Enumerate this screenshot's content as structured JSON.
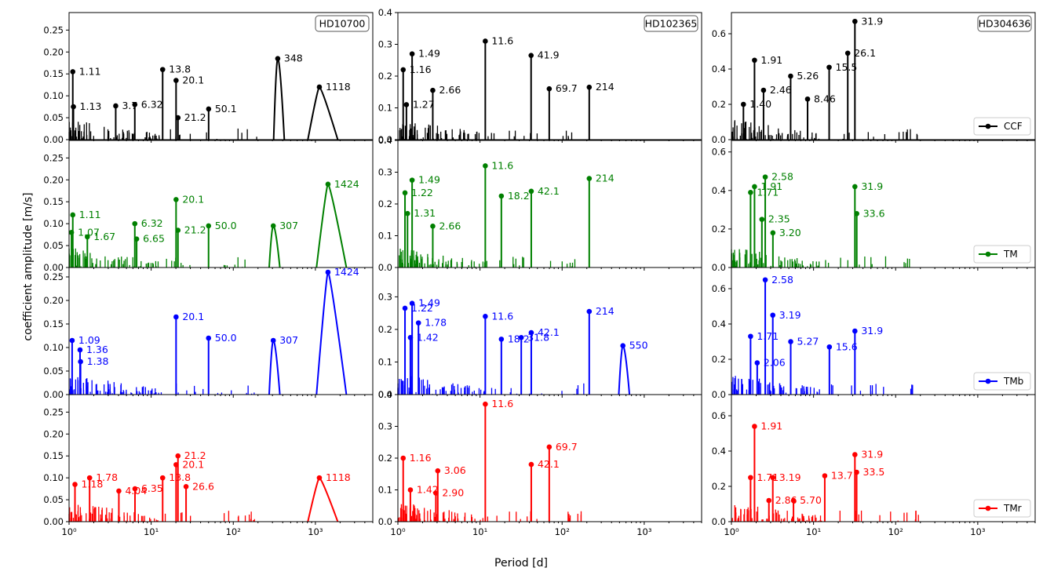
{
  "figure": {
    "ylabel": "coefficient amplitude [m/s]",
    "xlabel": "Period [d]",
    "xticks": [
      {
        "v": 1,
        "label": "10⁰"
      },
      {
        "v": 10,
        "label": "10¹"
      },
      {
        "v": 100,
        "label": "10²"
      },
      {
        "v": 1000,
        "label": "10³"
      }
    ],
    "xlim": [
      1,
      5000
    ],
    "xscale": "log",
    "stars": [
      "HD10700",
      "HD102365",
      "HD304636"
    ],
    "methods": [
      {
        "name": "CCF",
        "color": "#000000"
      },
      {
        "name": "TM",
        "color": "#008000"
      },
      {
        "name": "TMb",
        "color": "#0000ff"
      },
      {
        "name": "TMr",
        "color": "#ff0000"
      }
    ]
  },
  "chart_data": [
    {
      "type": "line",
      "star": "HD10700",
      "method": "CCF",
      "ylim": [
        0,
        0.29
      ],
      "yticks": [
        "0.00",
        "0.05",
        "0.10",
        "0.15",
        "0.20",
        "0.25"
      ],
      "peaks": [
        {
          "x": 1.11,
          "y": 0.155,
          "label": "1.11"
        },
        {
          "x": 1.13,
          "y": 0.075,
          "label": "1.13"
        },
        {
          "x": 3.7,
          "y": 0.077,
          "label": "3.7"
        },
        {
          "x": 6.32,
          "y": 0.08,
          "label": "6.32"
        },
        {
          "x": 13.8,
          "y": 0.16,
          "label": "13.8"
        },
        {
          "x": 20.1,
          "y": 0.135,
          "label": "20.1"
        },
        {
          "x": 21.2,
          "y": 0.05,
          "label": "21.2"
        },
        {
          "x": 50.1,
          "y": 0.07,
          "label": "50.1"
        },
        {
          "x": 348,
          "y": 0.185,
          "label": "348"
        },
        {
          "x": 1118,
          "y": 0.12,
          "label": "1118"
        }
      ]
    },
    {
      "type": "line",
      "star": "HD102365",
      "method": "CCF",
      "ylim": [
        0,
        0.4
      ],
      "yticks": [
        "0.0",
        "0.1",
        "0.2",
        "0.3",
        "0.4"
      ],
      "peaks": [
        {
          "x": 1.16,
          "y": 0.22,
          "label": "1.16"
        },
        {
          "x": 1.49,
          "y": 0.27,
          "label": "1.49"
        },
        {
          "x": 1.27,
          "y": 0.11,
          "label": "1.27"
        },
        {
          "x": 2.66,
          "y": 0.155,
          "label": "2.66"
        },
        {
          "x": 11.6,
          "y": 0.31,
          "label": "11.6"
        },
        {
          "x": 41.9,
          "y": 0.265,
          "label": "41.9"
        },
        {
          "x": 69.7,
          "y": 0.16,
          "label": "69.7"
        },
        {
          "x": 214,
          "y": 0.165,
          "label": "214"
        }
      ]
    },
    {
      "type": "line",
      "star": "HD304636",
      "method": "CCF",
      "ylim": [
        0,
        0.72
      ],
      "yticks": [
        "0.0",
        "0.2",
        "0.4",
        "0.6"
      ],
      "peaks": [
        {
          "x": 1.91,
          "y": 0.45,
          "label": "1.91"
        },
        {
          "x": 1.4,
          "y": 0.2,
          "label": "1.40"
        },
        {
          "x": 2.46,
          "y": 0.28,
          "label": "2.46"
        },
        {
          "x": 5.26,
          "y": 0.36,
          "label": "5.26"
        },
        {
          "x": 8.46,
          "y": 0.23,
          "label": "8.46"
        },
        {
          "x": 15.5,
          "y": 0.41,
          "label": "15.5"
        },
        {
          "x": 26.1,
          "y": 0.49,
          "label": "26.1"
        },
        {
          "x": 31.9,
          "y": 0.67,
          "label": "31.9"
        }
      ]
    },
    {
      "type": "line",
      "star": "HD10700",
      "method": "TM",
      "ylim": [
        0,
        0.29
      ],
      "yticks": [
        "0.00",
        "0.05",
        "0.10",
        "0.15",
        "0.20",
        "0.25"
      ],
      "peaks": [
        {
          "x": 1.11,
          "y": 0.12,
          "label": "1.11"
        },
        {
          "x": 1.07,
          "y": 0.08,
          "label": "1.07"
        },
        {
          "x": 1.67,
          "y": 0.07,
          "label": "1.67"
        },
        {
          "x": 6.32,
          "y": 0.1,
          "label": "6.32"
        },
        {
          "x": 6.65,
          "y": 0.065,
          "label": "6.65"
        },
        {
          "x": 20.1,
          "y": 0.155,
          "label": "20.1"
        },
        {
          "x": 21.2,
          "y": 0.085,
          "label": "21.2"
        },
        {
          "x": 50.0,
          "y": 0.095,
          "label": "50.0"
        },
        {
          "x": 307,
          "y": 0.095,
          "label": "307"
        },
        {
          "x": 1424,
          "y": 0.19,
          "label": "1424"
        }
      ]
    },
    {
      "type": "line",
      "star": "HD102365",
      "method": "TM",
      "ylim": [
        0,
        0.4
      ],
      "yticks": [
        "0.0",
        "0.1",
        "0.2",
        "0.3",
        "0.4"
      ],
      "peaks": [
        {
          "x": 1.22,
          "y": 0.235,
          "label": "1.22"
        },
        {
          "x": 1.49,
          "y": 0.275,
          "label": "1.49"
        },
        {
          "x": 1.31,
          "y": 0.17,
          "label": "1.31"
        },
        {
          "x": 2.66,
          "y": 0.13,
          "label": "2.66"
        },
        {
          "x": 11.6,
          "y": 0.32,
          "label": "11.6"
        },
        {
          "x": 18.2,
          "y": 0.225,
          "label": "18.2"
        },
        {
          "x": 42.1,
          "y": 0.24,
          "label": "42.1"
        },
        {
          "x": 214,
          "y": 0.28,
          "label": "214"
        }
      ]
    },
    {
      "type": "line",
      "star": "HD304636",
      "method": "TM",
      "ylim": [
        0,
        0.66
      ],
      "yticks": [
        "0.0",
        "0.2",
        "0.4",
        "0.6"
      ],
      "peaks": [
        {
          "x": 1.71,
          "y": 0.39,
          "label": "1.71"
        },
        {
          "x": 1.91,
          "y": 0.42,
          "label": "1.91"
        },
        {
          "x": 2.58,
          "y": 0.47,
          "label": "2.58"
        },
        {
          "x": 2.35,
          "y": 0.25,
          "label": "2.35"
        },
        {
          "x": 3.2,
          "y": 0.18,
          "label": "3.20"
        },
        {
          "x": 31.9,
          "y": 0.42,
          "label": "31.9"
        },
        {
          "x": 33.6,
          "y": 0.28,
          "label": "33.6"
        }
      ]
    },
    {
      "type": "line",
      "star": "HD10700",
      "method": "TMb",
      "ylim": [
        0,
        0.27
      ],
      "yticks": [
        "0.00",
        "0.05",
        "0.10",
        "0.15",
        "0.20",
        "0.25"
      ],
      "peaks": [
        {
          "x": 1.09,
          "y": 0.115,
          "label": "1.09"
        },
        {
          "x": 1.36,
          "y": 0.095,
          "label": "1.36"
        },
        {
          "x": 1.38,
          "y": 0.07,
          "label": "1.38"
        },
        {
          "x": 20.1,
          "y": 0.165,
          "label": "20.1"
        },
        {
          "x": 50.0,
          "y": 0.12,
          "label": "50.0"
        },
        {
          "x": 307,
          "y": 0.115,
          "label": "307"
        },
        {
          "x": 1424,
          "y": 0.26,
          "label": "1424"
        }
      ]
    },
    {
      "type": "line",
      "star": "HD102365",
      "method": "TMb",
      "ylim": [
        0,
        0.39
      ],
      "yticks": [
        "0.0",
        "0.1",
        "0.2",
        "0.3"
      ],
      "peaks": [
        {
          "x": 1.22,
          "y": 0.265,
          "label": "1.22"
        },
        {
          "x": 1.49,
          "y": 0.28,
          "label": "1.49"
        },
        {
          "x": 1.78,
          "y": 0.22,
          "label": "1.78"
        },
        {
          "x": 1.42,
          "y": 0.175,
          "label": "1.42"
        },
        {
          "x": 11.6,
          "y": 0.24,
          "label": "11.6"
        },
        {
          "x": 18.2,
          "y": 0.17,
          "label": "18.2"
        },
        {
          "x": 31.8,
          "y": 0.175,
          "label": "31.8"
        },
        {
          "x": 42.1,
          "y": 0.19,
          "label": "42.1"
        },
        {
          "x": 214,
          "y": 0.255,
          "label": "214"
        },
        {
          "x": 550,
          "y": 0.15,
          "label": "550"
        }
      ]
    },
    {
      "type": "line",
      "star": "HD304636",
      "method": "TMb",
      "ylim": [
        0,
        0.72
      ],
      "yticks": [
        "0.0",
        "0.2",
        "0.4",
        "0.6"
      ],
      "peaks": [
        {
          "x": 2.58,
          "y": 0.65,
          "label": "2.58"
        },
        {
          "x": 3.19,
          "y": 0.45,
          "label": "3.19"
        },
        {
          "x": 1.71,
          "y": 0.33,
          "label": "1.71"
        },
        {
          "x": 2.06,
          "y": 0.18,
          "label": "2.06"
        },
        {
          "x": 5.27,
          "y": 0.3,
          "label": "5.27"
        },
        {
          "x": 15.6,
          "y": 0.27,
          "label": "15.6"
        },
        {
          "x": 31.9,
          "y": 0.36,
          "label": "31.9"
        }
      ]
    },
    {
      "type": "line",
      "star": "HD10700",
      "method": "TMr",
      "ylim": [
        0,
        0.29
      ],
      "yticks": [
        "0.00",
        "0.05",
        "0.10",
        "0.15",
        "0.20",
        "0.25"
      ],
      "peaks": [
        {
          "x": 1.18,
          "y": 0.085,
          "label": "1.18"
        },
        {
          "x": 1.78,
          "y": 0.1,
          "label": "1.78"
        },
        {
          "x": 4.04,
          "y": 0.07,
          "label": "4.04"
        },
        {
          "x": 6.35,
          "y": 0.075,
          "label": "6.35"
        },
        {
          "x": 13.8,
          "y": 0.1,
          "label": "13.8"
        },
        {
          "x": 20.1,
          "y": 0.13,
          "label": "20.1"
        },
        {
          "x": 21.2,
          "y": 0.15,
          "label": "21.2"
        },
        {
          "x": 26.6,
          "y": 0.08,
          "label": "26.6"
        },
        {
          "x": 1118,
          "y": 0.1,
          "label": "1118"
        }
      ]
    },
    {
      "type": "line",
      "star": "HD102365",
      "method": "TMr",
      "ylim": [
        0,
        0.4
      ],
      "yticks": [
        "0.0",
        "0.1",
        "0.2",
        "0.3",
        "0.4"
      ],
      "peaks": [
        {
          "x": 1.16,
          "y": 0.2,
          "label": "1.16"
        },
        {
          "x": 1.42,
          "y": 0.1,
          "label": "1.42"
        },
        {
          "x": 2.9,
          "y": 0.09,
          "label": "2.90"
        },
        {
          "x": 3.06,
          "y": 0.16,
          "label": "3.06"
        },
        {
          "x": 11.6,
          "y": 0.37,
          "label": "11.6"
        },
        {
          "x": 42.1,
          "y": 0.18,
          "label": "42.1"
        },
        {
          "x": 69.7,
          "y": 0.235,
          "label": "69.7"
        }
      ]
    },
    {
      "type": "line",
      "star": "HD304636",
      "method": "TMr",
      "ylim": [
        0,
        0.72
      ],
      "yticks": [
        "0.0",
        "0.2",
        "0.4",
        "0.6"
      ],
      "peaks": [
        {
          "x": 1.91,
          "y": 0.54,
          "label": "1.91"
        },
        {
          "x": 1.71,
          "y": 0.25,
          "label": "1.71"
        },
        {
          "x": 3.19,
          "y": 0.25,
          "label": "3.19"
        },
        {
          "x": 2.86,
          "y": 0.12,
          "label": "2.86"
        },
        {
          "x": 5.7,
          "y": 0.12,
          "label": "5.70"
        },
        {
          "x": 13.7,
          "y": 0.26,
          "label": "13.7"
        },
        {
          "x": 31.9,
          "y": 0.38,
          "label": "31.9"
        },
        {
          "x": 33.5,
          "y": 0.28,
          "label": "33.5"
        }
      ]
    }
  ]
}
